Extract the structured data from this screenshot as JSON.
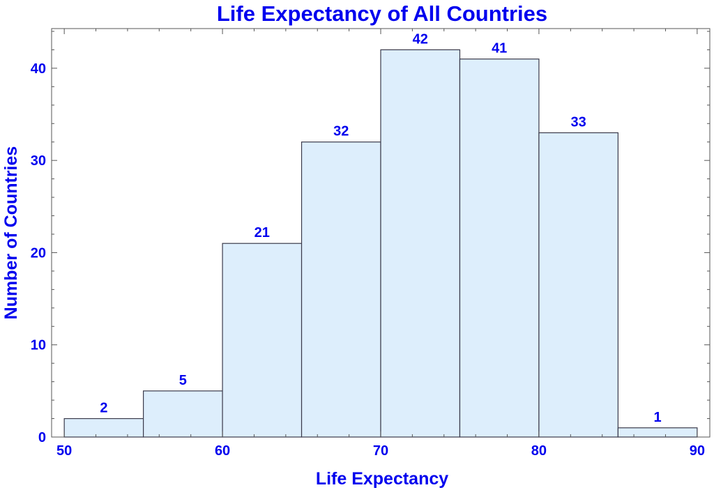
{
  "chart_data": {
    "type": "bar",
    "title": "Life Expectancy of All Countries",
    "xlabel": "Life Expectancy",
    "ylabel": "Number of Countries",
    "bins": [
      {
        "start": 50,
        "end": 55,
        "value": 2
      },
      {
        "start": 55,
        "end": 60,
        "value": 5
      },
      {
        "start": 60,
        "end": 65,
        "value": 21
      },
      {
        "start": 65,
        "end": 70,
        "value": 32
      },
      {
        "start": 70,
        "end": 75,
        "value": 42
      },
      {
        "start": 75,
        "end": 80,
        "value": 41
      },
      {
        "start": 80,
        "end": 85,
        "value": 33
      },
      {
        "start": 85,
        "end": 90,
        "value": 1
      }
    ],
    "xlim": [
      49.2,
      90.8
    ],
    "ylim": [
      0,
      44.3
    ],
    "x_ticks": [
      50,
      60,
      70,
      80,
      90
    ],
    "y_ticks": [
      0,
      10,
      20,
      30,
      40
    ],
    "grid": false,
    "colors": {
      "bar_fill": "#ddeefc",
      "text": "#0000ee"
    }
  }
}
